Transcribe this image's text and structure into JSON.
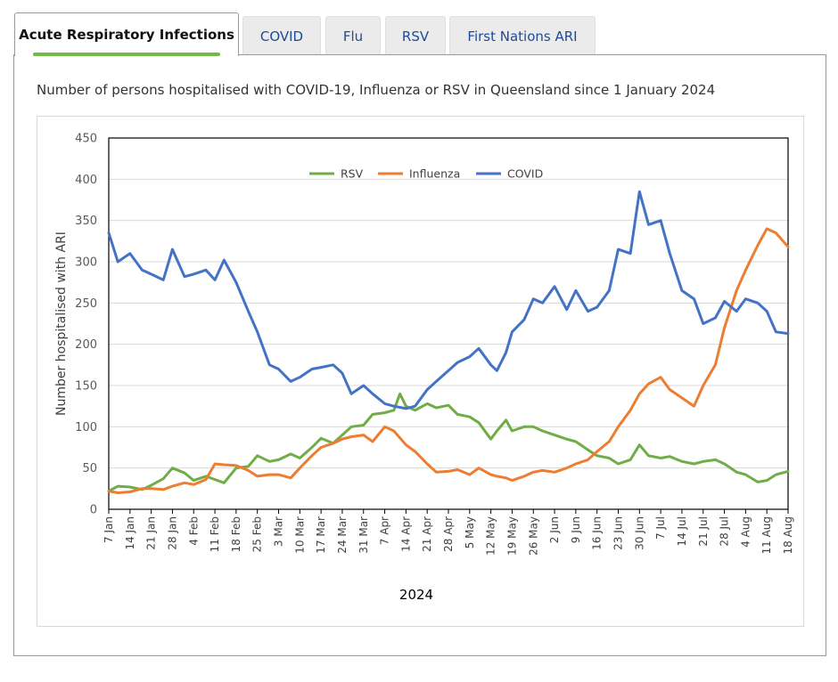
{
  "tabs": [
    {
      "label": "Acute Respiratory Infections",
      "active": true
    },
    {
      "label": "COVID",
      "active": false
    },
    {
      "label": "Flu",
      "active": false
    },
    {
      "label": "RSV",
      "active": false
    },
    {
      "label": "First Nations ARI",
      "active": false
    }
  ],
  "heading": "Number of persons hospitalised with COVID-19, Influenza or RSV in Queensland since 1 January 2024",
  "colors": {
    "accent": "#6fbe44",
    "tab_text": "#1f4a96"
  },
  "chart_data": {
    "type": "line",
    "xlabel": "2024",
    "ylabel": "Number hospitalised with ARI",
    "ylim": [
      0,
      450
    ],
    "yticks": [
      0,
      50,
      100,
      150,
      200,
      250,
      300,
      350,
      400,
      450
    ],
    "xlim": [
      "2024-01-07",
      "2024-08-18"
    ],
    "x_tick_labels": [
      "7 Jan",
      "14 Jan",
      "21 Jan",
      "28 Jan",
      "4 Feb",
      "11 Feb",
      "18 Feb",
      "25 Feb",
      "3 Mar",
      "10 Mar",
      "17 Mar",
      "24 Mar",
      "31 Mar",
      "7 Apr",
      "14 Apr",
      "21 Apr",
      "28 Apr",
      "5 May",
      "12 May",
      "19 May",
      "26 May",
      "2 Jun",
      "9 Jun",
      "16 Jun",
      "23 Jun",
      "30 Jun",
      "7 Jul",
      "14 Jul",
      "21 Jul",
      "28 Jul",
      "4 Aug",
      "11 Aug",
      "18 Aug"
    ],
    "grid": "horizontal",
    "legend_position": "top-center",
    "series": [
      {
        "name": "RSV",
        "color": "#70ad47",
        "points": [
          [
            "2024-01-07",
            22
          ],
          [
            "2024-01-10",
            28
          ],
          [
            "2024-01-14",
            27
          ],
          [
            "2024-01-18",
            24
          ],
          [
            "2024-01-21",
            29
          ],
          [
            "2024-01-25",
            37
          ],
          [
            "2024-01-28",
            50
          ],
          [
            "2024-02-01",
            44
          ],
          [
            "2024-02-04",
            35
          ],
          [
            "2024-02-08",
            40
          ],
          [
            "2024-02-11",
            36
          ],
          [
            "2024-02-14",
            32
          ],
          [
            "2024-02-18",
            50
          ],
          [
            "2024-02-22",
            52
          ],
          [
            "2024-02-25",
            65
          ],
          [
            "2024-02-29",
            58
          ],
          [
            "2024-03-03",
            60
          ],
          [
            "2024-03-07",
            67
          ],
          [
            "2024-03-10",
            62
          ],
          [
            "2024-03-14",
            75
          ],
          [
            "2024-03-17",
            86
          ],
          [
            "2024-03-21",
            80
          ],
          [
            "2024-03-24",
            90
          ],
          [
            "2024-03-27",
            100
          ],
          [
            "2024-03-31",
            102
          ],
          [
            "2024-04-03",
            115
          ],
          [
            "2024-04-07",
            117
          ],
          [
            "2024-04-10",
            120
          ],
          [
            "2024-04-12",
            140
          ],
          [
            "2024-04-14",
            125
          ],
          [
            "2024-04-17",
            120
          ],
          [
            "2024-04-21",
            128
          ],
          [
            "2024-04-24",
            123
          ],
          [
            "2024-04-28",
            126
          ],
          [
            "2024-05-01",
            115
          ],
          [
            "2024-05-05",
            112
          ],
          [
            "2024-05-08",
            105
          ],
          [
            "2024-05-12",
            85
          ],
          [
            "2024-05-14",
            95
          ],
          [
            "2024-05-17",
            108
          ],
          [
            "2024-05-19",
            95
          ],
          [
            "2024-05-23",
            100
          ],
          [
            "2024-05-26",
            100
          ],
          [
            "2024-05-29",
            95
          ],
          [
            "2024-06-02",
            90
          ],
          [
            "2024-06-06",
            85
          ],
          [
            "2024-06-09",
            82
          ],
          [
            "2024-06-13",
            72
          ],
          [
            "2024-06-16",
            65
          ],
          [
            "2024-06-20",
            62
          ],
          [
            "2024-06-23",
            55
          ],
          [
            "2024-06-27",
            60
          ],
          [
            "2024-06-30",
            78
          ],
          [
            "2024-07-03",
            65
          ],
          [
            "2024-07-07",
            62
          ],
          [
            "2024-07-10",
            64
          ],
          [
            "2024-07-14",
            58
          ],
          [
            "2024-07-18",
            55
          ],
          [
            "2024-07-21",
            58
          ],
          [
            "2024-07-25",
            60
          ],
          [
            "2024-07-28",
            55
          ],
          [
            "2024-08-01",
            45
          ],
          [
            "2024-08-04",
            42
          ],
          [
            "2024-08-08",
            33
          ],
          [
            "2024-08-11",
            35
          ],
          [
            "2024-08-14",
            42
          ],
          [
            "2024-08-18",
            46
          ]
        ]
      },
      {
        "name": "Influenza",
        "color": "#ed7d31",
        "points": [
          [
            "2024-01-07",
            22
          ],
          [
            "2024-01-10",
            20
          ],
          [
            "2024-01-14",
            21
          ],
          [
            "2024-01-18",
            25
          ],
          [
            "2024-01-21",
            25
          ],
          [
            "2024-01-25",
            24
          ],
          [
            "2024-01-28",
            28
          ],
          [
            "2024-02-01",
            32
          ],
          [
            "2024-02-04",
            30
          ],
          [
            "2024-02-08",
            36
          ],
          [
            "2024-02-11",
            55
          ],
          [
            "2024-02-14",
            54
          ],
          [
            "2024-02-18",
            53
          ],
          [
            "2024-02-22",
            47
          ],
          [
            "2024-02-25",
            40
          ],
          [
            "2024-02-29",
            42
          ],
          [
            "2024-03-03",
            42
          ],
          [
            "2024-03-07",
            38
          ],
          [
            "2024-03-10",
            50
          ],
          [
            "2024-03-14",
            65
          ],
          [
            "2024-03-17",
            75
          ],
          [
            "2024-03-21",
            80
          ],
          [
            "2024-03-24",
            85
          ],
          [
            "2024-03-27",
            88
          ],
          [
            "2024-03-31",
            90
          ],
          [
            "2024-04-03",
            82
          ],
          [
            "2024-04-07",
            100
          ],
          [
            "2024-04-10",
            95
          ],
          [
            "2024-04-14",
            78
          ],
          [
            "2024-04-17",
            70
          ],
          [
            "2024-04-21",
            55
          ],
          [
            "2024-04-24",
            45
          ],
          [
            "2024-04-28",
            46
          ],
          [
            "2024-05-01",
            48
          ],
          [
            "2024-05-05",
            42
          ],
          [
            "2024-05-08",
            50
          ],
          [
            "2024-05-12",
            42
          ],
          [
            "2024-05-14",
            40
          ],
          [
            "2024-05-17",
            38
          ],
          [
            "2024-05-19",
            35
          ],
          [
            "2024-05-23",
            40
          ],
          [
            "2024-05-26",
            45
          ],
          [
            "2024-05-29",
            47
          ],
          [
            "2024-06-02",
            45
          ],
          [
            "2024-06-06",
            50
          ],
          [
            "2024-06-09",
            55
          ],
          [
            "2024-06-13",
            60
          ],
          [
            "2024-06-16",
            70
          ],
          [
            "2024-06-20",
            82
          ],
          [
            "2024-06-23",
            100
          ],
          [
            "2024-06-27",
            120
          ],
          [
            "2024-06-30",
            140
          ],
          [
            "2024-07-03",
            152
          ],
          [
            "2024-07-07",
            160
          ],
          [
            "2024-07-10",
            145
          ],
          [
            "2024-07-14",
            135
          ],
          [
            "2024-07-18",
            125
          ],
          [
            "2024-07-21",
            150
          ],
          [
            "2024-07-25",
            175
          ],
          [
            "2024-07-28",
            220
          ],
          [
            "2024-08-01",
            265
          ],
          [
            "2024-08-04",
            290
          ],
          [
            "2024-08-08",
            320
          ],
          [
            "2024-08-11",
            340
          ],
          [
            "2024-08-14",
            335
          ],
          [
            "2024-08-18",
            318
          ]
        ]
      },
      {
        "name": "COVID",
        "color": "#4472c4",
        "points": [
          [
            "2024-01-07",
            335
          ],
          [
            "2024-01-10",
            300
          ],
          [
            "2024-01-14",
            310
          ],
          [
            "2024-01-18",
            290
          ],
          [
            "2024-01-21",
            285
          ],
          [
            "2024-01-25",
            278
          ],
          [
            "2024-01-28",
            315
          ],
          [
            "2024-02-01",
            282
          ],
          [
            "2024-02-04",
            285
          ],
          [
            "2024-02-08",
            290
          ],
          [
            "2024-02-11",
            278
          ],
          [
            "2024-02-14",
            302
          ],
          [
            "2024-02-18",
            275
          ],
          [
            "2024-02-22",
            240
          ],
          [
            "2024-02-25",
            215
          ],
          [
            "2024-02-29",
            175
          ],
          [
            "2024-03-03",
            170
          ],
          [
            "2024-03-07",
            155
          ],
          [
            "2024-03-10",
            160
          ],
          [
            "2024-03-14",
            170
          ],
          [
            "2024-03-17",
            172
          ],
          [
            "2024-03-21",
            175
          ],
          [
            "2024-03-24",
            165
          ],
          [
            "2024-03-27",
            140
          ],
          [
            "2024-03-31",
            150
          ],
          [
            "2024-04-03",
            140
          ],
          [
            "2024-04-07",
            128
          ],
          [
            "2024-04-10",
            125
          ],
          [
            "2024-04-14",
            122
          ],
          [
            "2024-04-17",
            125
          ],
          [
            "2024-04-21",
            145
          ],
          [
            "2024-04-24",
            155
          ],
          [
            "2024-04-28",
            168
          ],
          [
            "2024-05-01",
            178
          ],
          [
            "2024-05-05",
            185
          ],
          [
            "2024-05-08",
            195
          ],
          [
            "2024-05-12",
            175
          ],
          [
            "2024-05-14",
            168
          ],
          [
            "2024-05-17",
            190
          ],
          [
            "2024-05-19",
            215
          ],
          [
            "2024-05-23",
            230
          ],
          [
            "2024-05-26",
            255
          ],
          [
            "2024-05-29",
            250
          ],
          [
            "2024-06-02",
            270
          ],
          [
            "2024-06-06",
            242
          ],
          [
            "2024-06-09",
            265
          ],
          [
            "2024-06-13",
            240
          ],
          [
            "2024-06-16",
            245
          ],
          [
            "2024-06-20",
            265
          ],
          [
            "2024-06-23",
            315
          ],
          [
            "2024-06-27",
            310
          ],
          [
            "2024-06-30",
            385
          ],
          [
            "2024-07-03",
            345
          ],
          [
            "2024-07-07",
            350
          ],
          [
            "2024-07-10",
            310
          ],
          [
            "2024-07-14",
            265
          ],
          [
            "2024-07-18",
            255
          ],
          [
            "2024-07-21",
            225
          ],
          [
            "2024-07-25",
            232
          ],
          [
            "2024-07-28",
            252
          ],
          [
            "2024-08-01",
            240
          ],
          [
            "2024-08-04",
            255
          ],
          [
            "2024-08-08",
            250
          ],
          [
            "2024-08-11",
            240
          ],
          [
            "2024-08-14",
            215
          ],
          [
            "2024-08-18",
            213
          ]
        ]
      }
    ]
  }
}
